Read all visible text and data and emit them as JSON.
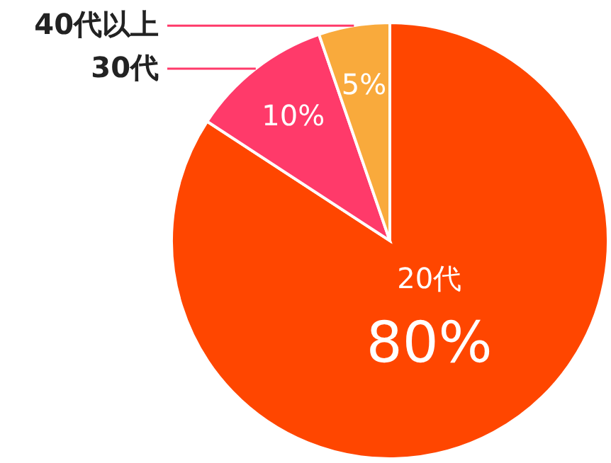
{
  "chart_data": {
    "type": "pie",
    "categories": [
      "20代",
      "30代",
      "40代以上"
    ],
    "values": [
      80,
      10,
      5
    ],
    "value_labels": [
      "80%",
      "10%",
      "5%"
    ],
    "colors": [
      "#ff4600",
      "#ff3a6a",
      "#f9aa3c"
    ]
  }
}
